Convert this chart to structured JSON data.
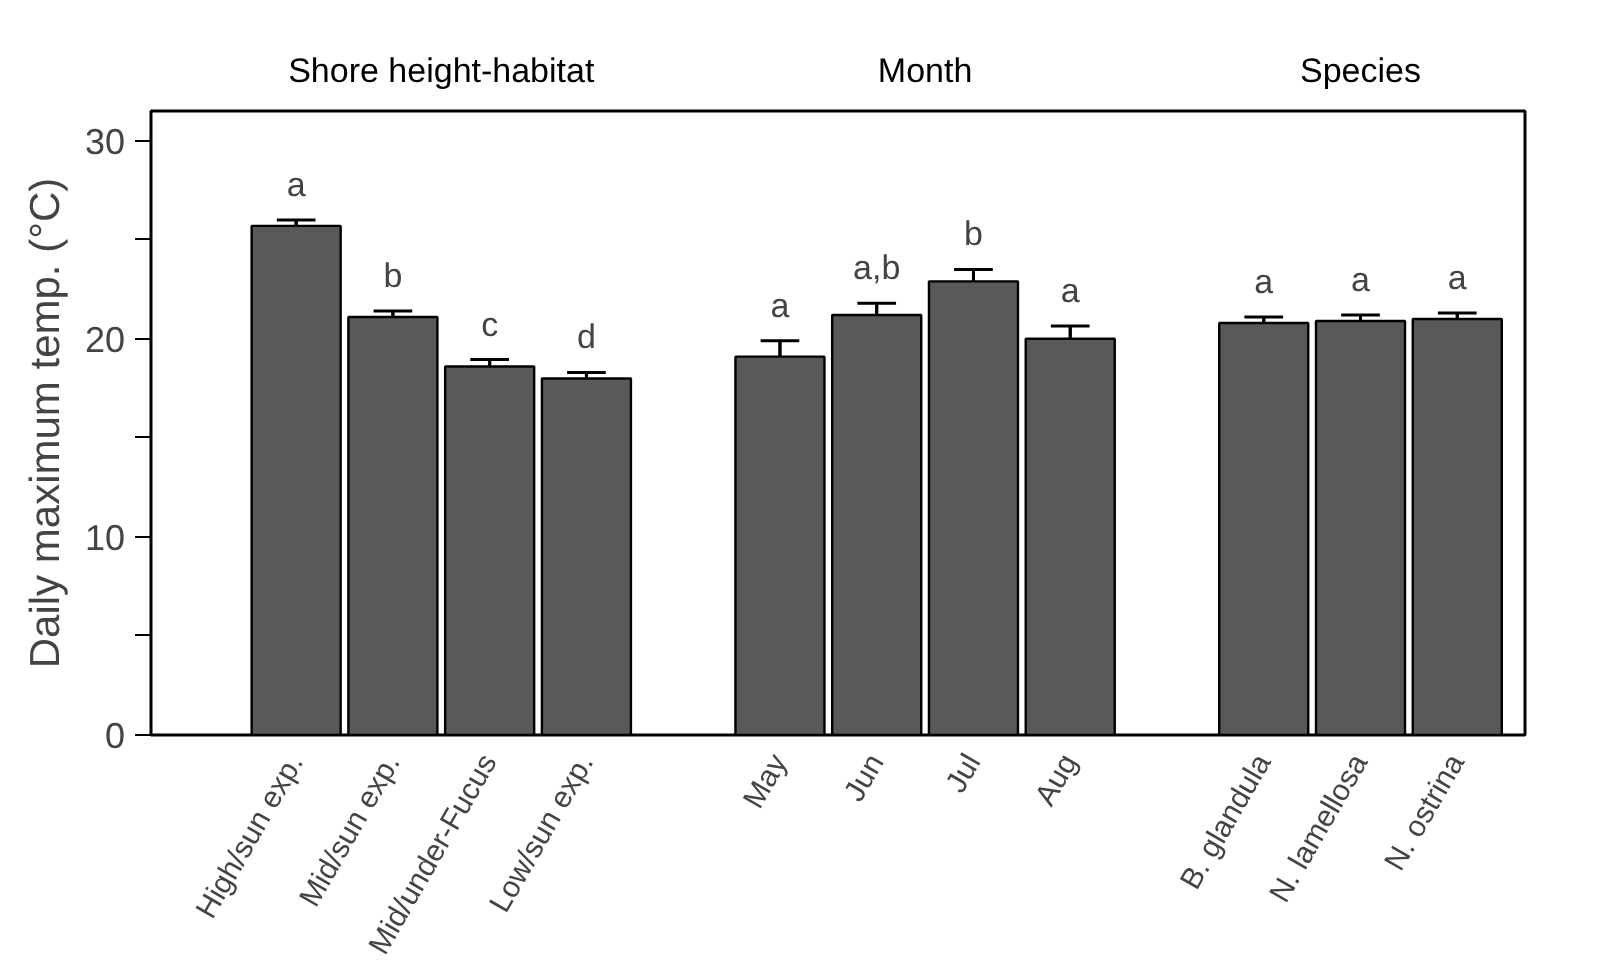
{
  "chart_data": {
    "type": "bar",
    "ylabel": "Daily maximum temp. (°C)",
    "categories": [
      "High/sun exp.",
      "Mid/sun exp.",
      "Mid/under-Fucus",
      "Low/sun exp.",
      null,
      "May",
      "Jun",
      "Jul",
      "Aug",
      null,
      "B. glandula",
      "N. lamellosa",
      "N. ostrina"
    ],
    "values": [
      25.7,
      21.1,
      18.6,
      18.0,
      null,
      19.1,
      21.2,
      22.9,
      20.0,
      null,
      20.8,
      20.9,
      21.0
    ],
    "errors": [
      0.3,
      0.3,
      0.35,
      0.3,
      null,
      0.8,
      0.6,
      0.6,
      0.65,
      null,
      0.3,
      0.3,
      0.3
    ],
    "color": "#595959",
    "ylim": [
      0,
      31.5
    ],
    "yticks": [
      0,
      {
        "value": 5,
        "label": null
      },
      10,
      {
        "value": 15,
        "label": null
      },
      20,
      {
        "value": 25,
        "label": null
      },
      30
    ],
    "grid": false,
    "annotations": [
      "Shore height-habitat",
      "Month",
      "Species",
      "a",
      "b",
      "c",
      "d",
      "a",
      "a,b",
      "b",
      "a",
      "a",
      "a",
      "a"
    ]
  }
}
